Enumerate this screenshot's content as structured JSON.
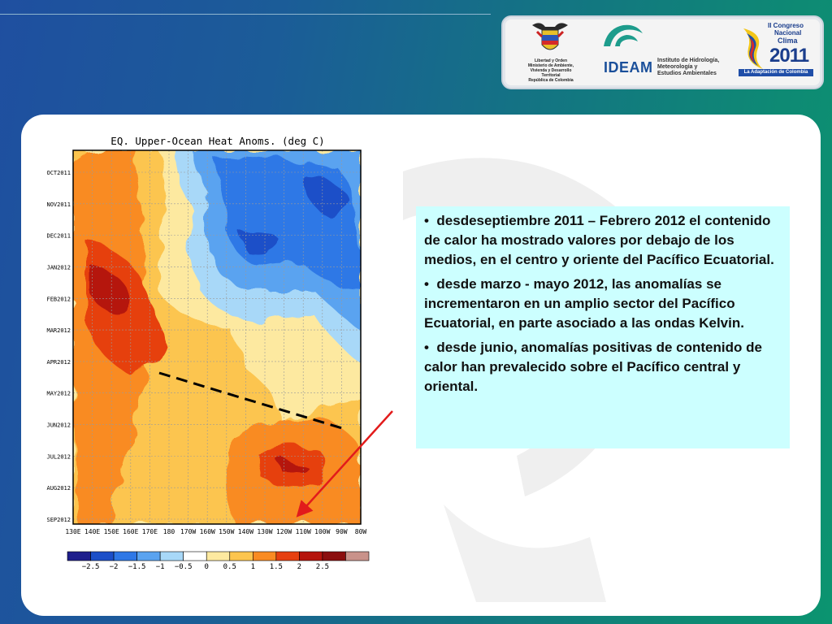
{
  "logos": {
    "ministerio": "Libertad y Orden\nMinisterio de Ambiente,\nVivienda y Desarrollo Territorial\nRepública de Colombia",
    "ideam_name": "IDEAM",
    "ideam_sub": "Instituto de Hidrología,\nMeteorología y\nEstudios Ambientales",
    "congreso_line1": "II Congreso",
    "congreso_line2": "Nacional",
    "congreso_line3": "Clima",
    "congreso_year": "2011",
    "congreso_tag": "La Adaptación de Colombia"
  },
  "chart_data": {
    "type": "heatmap",
    "title": "EQ. Upper-Ocean Heat Anoms. (deg C)",
    "x_ticks": [
      "130E",
      "140E",
      "150E",
      "160E",
      "170E",
      "180",
      "170W",
      "160W",
      "150W",
      "140W",
      "130W",
      "120W",
      "110W",
      "100W",
      "90W",
      "80W"
    ],
    "y_ticks": [
      "OCT2011",
      "NOV2011",
      "DEC2011",
      "JAN2012",
      "FEB2012",
      "MAR2012",
      "APR2012",
      "MAY2012",
      "JUN2012",
      "JUL2012",
      "AUG2012",
      "SEP2012"
    ],
    "colorbar_labels": [
      "−2.5",
      "−2",
      "−1.5",
      "−1",
      "−0.5",
      "0",
      "0.5",
      "1",
      "1.5",
      "2",
      "2.5"
    ],
    "colorbar_colors": [
      "#1e1e8c",
      "#1c4fc8",
      "#2f78e6",
      "#5aa3f0",
      "#a8d8f8",
      "#ffffff",
      "#fde9a0",
      "#fcc54f",
      "#f98b22",
      "#e64010",
      "#b5140c",
      "#8b0e0e",
      "#c9928a"
    ],
    "annotation": "dashed line marks eastward propagation of anomalies (Kelvin wave)"
  },
  "text_panel": {
    "bullets": [
      "desdeseptiembre 2011 – Febrero 2012 el contenido de calor ha mostrado valores por debajo de los medios, en el centro y oriente del Pacífico Ecuatorial.",
      "desde marzo - mayo 2012,  las anomalías se incrementaron en un amplio sector del Pacífico Ecuatorial, en parte asociado a las ondas Kelvin.",
      "desde junio, anomalías positivas de contenido de calor han prevalecido sobre el Pacífico central y oriental."
    ]
  }
}
